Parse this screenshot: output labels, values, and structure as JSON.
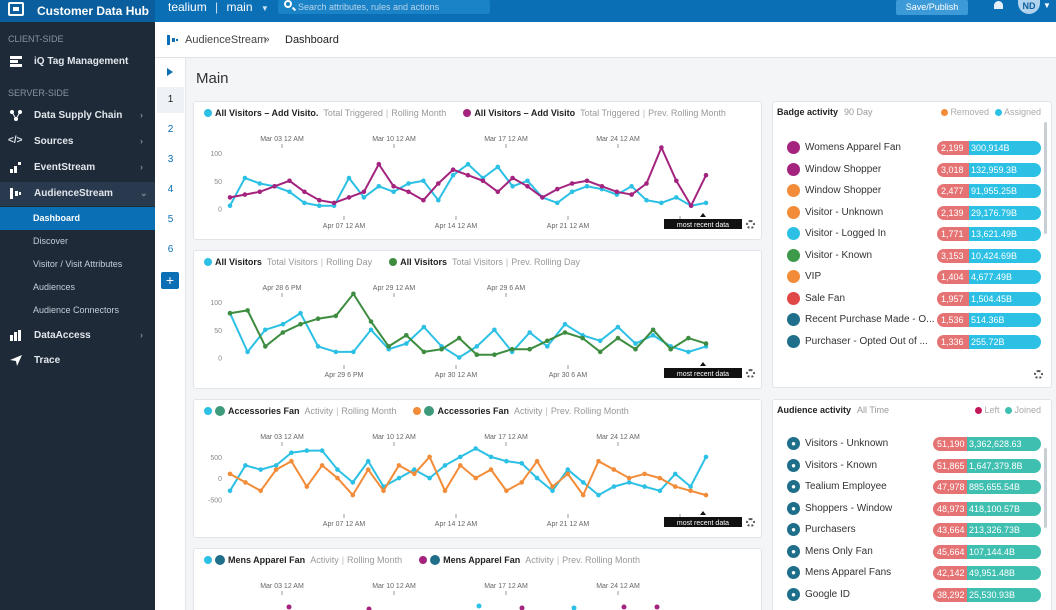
{
  "topbar": {
    "app_name": "Customer Data Hub",
    "account": "tealium",
    "profile": "main",
    "search_placeholder": "Search attributes, rules and actions",
    "save_label": "Save/Publish",
    "user_initials": "ND"
  },
  "sidebar": {
    "client_header": "CLIENT-SIDE",
    "server_header": "SERVER-SIDE",
    "client_items": [
      {
        "label": "iQ Tag Management",
        "icon": "tag-management-icon"
      }
    ],
    "server_items": [
      {
        "label": "Data Supply Chain",
        "icon": "data-supply-chain-icon",
        "chevron": true
      },
      {
        "label": "Sources",
        "icon": "code-icon",
        "chevron": true
      },
      {
        "label": "EventStream",
        "icon": "eventstream-icon",
        "chevron": true
      },
      {
        "label": "AudienceStream",
        "icon": "audiencestream-icon",
        "chevron": true,
        "expanded": true
      }
    ],
    "audience_sub": [
      "Dashboard",
      "Discover",
      "Visitor / Visit Attributes",
      "Audiences",
      "Audience Connectors"
    ],
    "bottom_items": [
      {
        "label": "DataAccess",
        "icon": "dataaccess-icon",
        "chevron": true
      },
      {
        "label": "Trace",
        "icon": "trace-icon",
        "chevron": false
      }
    ]
  },
  "breadcrumb": {
    "parent": "AudienceStream",
    "separator": "»",
    "current": "Dashboard"
  },
  "tabs": [
    "1",
    "2",
    "3",
    "4",
    "5",
    "6"
  ],
  "page_title": "Main",
  "panels": [
    {
      "legend": {
        "s1_name": "All Visitors – Add Visito.",
        "s1_m1": "Total Triggered",
        "s1_m2": "Rolling Month",
        "s2_name": "All Visitors – Add Visito",
        "s2_m1": "Total Triggered",
        "s2_m2": "Prev. Rolling Month"
      },
      "top_ticks": [
        "Mar 03 12 AM",
        "Mar 10 12 AM",
        "Mar 17 12 AM",
        "Mar 24 12 AM"
      ],
      "bottom_ticks": [
        "Apr 07 12 AM",
        "Apr 14 12 AM",
        "Apr 21 12 AM",
        "Ap"
      ],
      "tag": "most recent data",
      "colors": [
        "#2bc0e4",
        "#a3237f"
      ]
    },
    {
      "legend": {
        "s1_name": "All Visitors",
        "s1_m1": "Total Visitors",
        "s1_m2": "Rolling Day",
        "s2_name": "All Visitors",
        "s2_m1": "Total Visitors",
        "s2_m2": "Prev. Rolling Day"
      },
      "top_ticks": [
        "Apr 28 6 PM",
        "Apr 29 12 AM",
        "Apr 29 6 AM"
      ],
      "bottom_ticks": [
        "Apr 29 6 PM",
        "Apr 30 12 AM",
        "Apr 30 6 AM"
      ],
      "tag": "most recent data",
      "colors": [
        "#2bc0e4",
        "#3d8c3f"
      ]
    },
    {
      "legend": {
        "s1_name": "Accessories Fan",
        "s1_m1": "Activity",
        "s1_m2": "Rolling Month",
        "s2_name": "Accessories Fan",
        "s2_m1": "Activity",
        "s2_m2": "Prev. Rolling Month"
      },
      "top_ticks": [
        "Mar 03 12 AM",
        "Mar 10 12 AM",
        "Mar 17 12 AM",
        "Mar 24 12 AM"
      ],
      "bottom_ticks": [
        "Apr 07 12 AM",
        "Apr 14 12 AM",
        "Apr 21 12 AM",
        "Ap"
      ],
      "tag": "most recent data",
      "colors": [
        "#2bc0e4",
        "#f28c38"
      ]
    },
    {
      "legend": {
        "s1_name": "Mens Apparel Fan",
        "s1_m1": "Activity",
        "s1_m2": "Rolling Month",
        "s2_name": "Mens Apparel Fan",
        "s2_m1": "Activity",
        "s2_m2": "Prev. Rolling Month"
      },
      "top_ticks": [
        "Mar 03 12 AM",
        "Mar 10 12 AM",
        "Mar 17 12 AM",
        "Mar 24 12 AM"
      ],
      "colors": [
        "#2bc0e4",
        "#a3237f"
      ]
    }
  ],
  "chart_data": [
    {
      "type": "line",
      "yticks": [
        "100",
        "50",
        "0"
      ],
      "ylim": [
        -10,
        120
      ],
      "series": [
        {
          "name": "All Visitors – Add Visito.",
          "color": "#2bc0e4",
          "values": [
            5,
            55,
            45,
            40,
            30,
            10,
            5,
            5,
            55,
            20,
            40,
            30,
            45,
            50,
            15,
            60,
            80,
            55,
            75,
            40,
            50,
            20,
            10,
            30,
            40,
            35,
            25,
            40,
            15,
            10,
            20,
            5,
            10
          ]
        },
        {
          "name": "All Visitors – Add Visito",
          "color": "#a3237f",
          "values": [
            20,
            25,
            30,
            40,
            50,
            30,
            15,
            10,
            20,
            30,
            80,
            40,
            30,
            15,
            45,
            70,
            60,
            50,
            30,
            55,
            40,
            20,
            35,
            45,
            50,
            40,
            30,
            25,
            45,
            110,
            50,
            5,
            60
          ]
        }
      ]
    },
    {
      "type": "line",
      "yticks": [
        "100",
        "50",
        "0"
      ],
      "ylim": [
        -10,
        120
      ],
      "series": [
        {
          "name": "All Visitors",
          "color": "#2bc0e4",
          "values": [
            80,
            10,
            50,
            60,
            80,
            20,
            10,
            10,
            50,
            15,
            25,
            55,
            20,
            0,
            20,
            50,
            10,
            45,
            20,
            60,
            40,
            30,
            55,
            25,
            40,
            20,
            10,
            20
          ]
        },
        {
          "name": "All Visitors",
          "color": "#3d8c3f",
          "values": [
            80,
            85,
            20,
            45,
            60,
            70,
            75,
            115,
            65,
            20,
            40,
            10,
            15,
            35,
            5,
            5,
            15,
            15,
            30,
            45,
            35,
            10,
            35,
            15,
            50,
            15,
            35,
            25
          ]
        }
      ]
    },
    {
      "type": "line",
      "yticks": [
        "500",
        "0",
        "-500"
      ],
      "ylim": [
        -800,
        900
      ],
      "series": [
        {
          "name": "Accessories Fan",
          "color": "#2bc0e4",
          "values": [
            -300,
            300,
            200,
            300,
            600,
            650,
            650,
            200,
            -100,
            400,
            -200,
            0,
            200,
            0,
            300,
            500,
            700,
            500,
            400,
            350,
            0,
            -300,
            200,
            -100,
            -400,
            -200,
            -100,
            -200,
            -300,
            100,
            -200,
            500
          ]
        },
        {
          "name": "Accessories Fan",
          "color": "#f28c38",
          "values": [
            100,
            -100,
            -300,
            200,
            400,
            -200,
            300,
            0,
            -400,
            200,
            -300,
            300,
            100,
            500,
            -300,
            300,
            0,
            200,
            -300,
            -100,
            400,
            -200,
            100,
            -400,
            400,
            200,
            0,
            100,
            0,
            -200,
            -300,
            -400
          ]
        }
      ]
    }
  ],
  "badge_activity": {
    "title": "Badge activity",
    "range": "90 Day",
    "legend_removed": "Removed",
    "legend_assigned": "Assigned",
    "colors": {
      "removed": "#e57373",
      "assigned": "#2bc0e4"
    },
    "rows": [
      {
        "name": "Womens Apparel Fan",
        "removed": "2,199",
        "assigned": "300,914B",
        "icon_color": "#a3237f",
        "icon": "person-icon"
      },
      {
        "name": "Window Shopper",
        "removed": "3,018",
        "assigned": "132,959.3B",
        "icon_color": "#a3237f",
        "icon": "calendar-icon"
      },
      {
        "name": "Window Shopper",
        "removed": "2,477",
        "assigned": "91,955.25B",
        "icon_color": "#f28c38",
        "icon": "circle-icon"
      },
      {
        "name": "Visitor - Unknown",
        "removed": "2,139",
        "assigned": "29,176.79B",
        "icon_color": "#f28c38",
        "icon": "x-icon"
      },
      {
        "name": "Visitor - Logged In",
        "removed": "1,771",
        "assigned": "13,621.49B",
        "icon_color": "#2bc0e4",
        "icon": "check-icon"
      },
      {
        "name": "Visitor - Known",
        "removed": "3,153",
        "assigned": "10,424.69B",
        "icon_color": "#3d9a4a",
        "icon": "person-icon"
      },
      {
        "name": "VIP",
        "removed": "1,404",
        "assigned": "4,677.49B",
        "icon_color": "#f28c38",
        "icon": "crown-icon"
      },
      {
        "name": "Sale Fan",
        "removed": "1,957",
        "assigned": "1,504.45B",
        "icon_color": "#e04848",
        "icon": "tag-icon"
      },
      {
        "name": "Recent Purchase Made - O...",
        "removed": "1,536",
        "assigned": "514.36B",
        "icon_color": "#1f6f8b",
        "icon": "cart-icon"
      },
      {
        "name": "Purchaser - Opted Out of ...",
        "removed": "1,336",
        "assigned": "255.72B",
        "icon_color": "#1f6f8b",
        "icon": "cart-icon"
      }
    ]
  },
  "audience_activity": {
    "title": "Audience activity",
    "range": "All Time",
    "legend_left": "Left",
    "legend_joined": "Joined",
    "colors": {
      "left": "#e57373",
      "joined": "#3fbfb0"
    },
    "rows": [
      {
        "name": "Visitors - Unknown",
        "left": "51,190",
        "joined": "3,362,628.63"
      },
      {
        "name": "Visitors - Known",
        "left": "51,865",
        "joined": "1,647,379.8B"
      },
      {
        "name": "Tealium Employee",
        "left": "47,978",
        "joined": "885,655.54B"
      },
      {
        "name": "Shoppers - Window",
        "left": "48,973",
        "joined": "418,100.57B"
      },
      {
        "name": "Purchasers",
        "left": "43,664",
        "joined": "213,326.73B"
      },
      {
        "name": "Mens Only Fan",
        "left": "45,664",
        "joined": "107,144.4B"
      },
      {
        "name": "Mens Apparel Fans",
        "left": "42,142",
        "joined": "49,951.48B"
      },
      {
        "name": "Google ID",
        "left": "38,292",
        "joined": "25,530.93B"
      }
    ]
  }
}
